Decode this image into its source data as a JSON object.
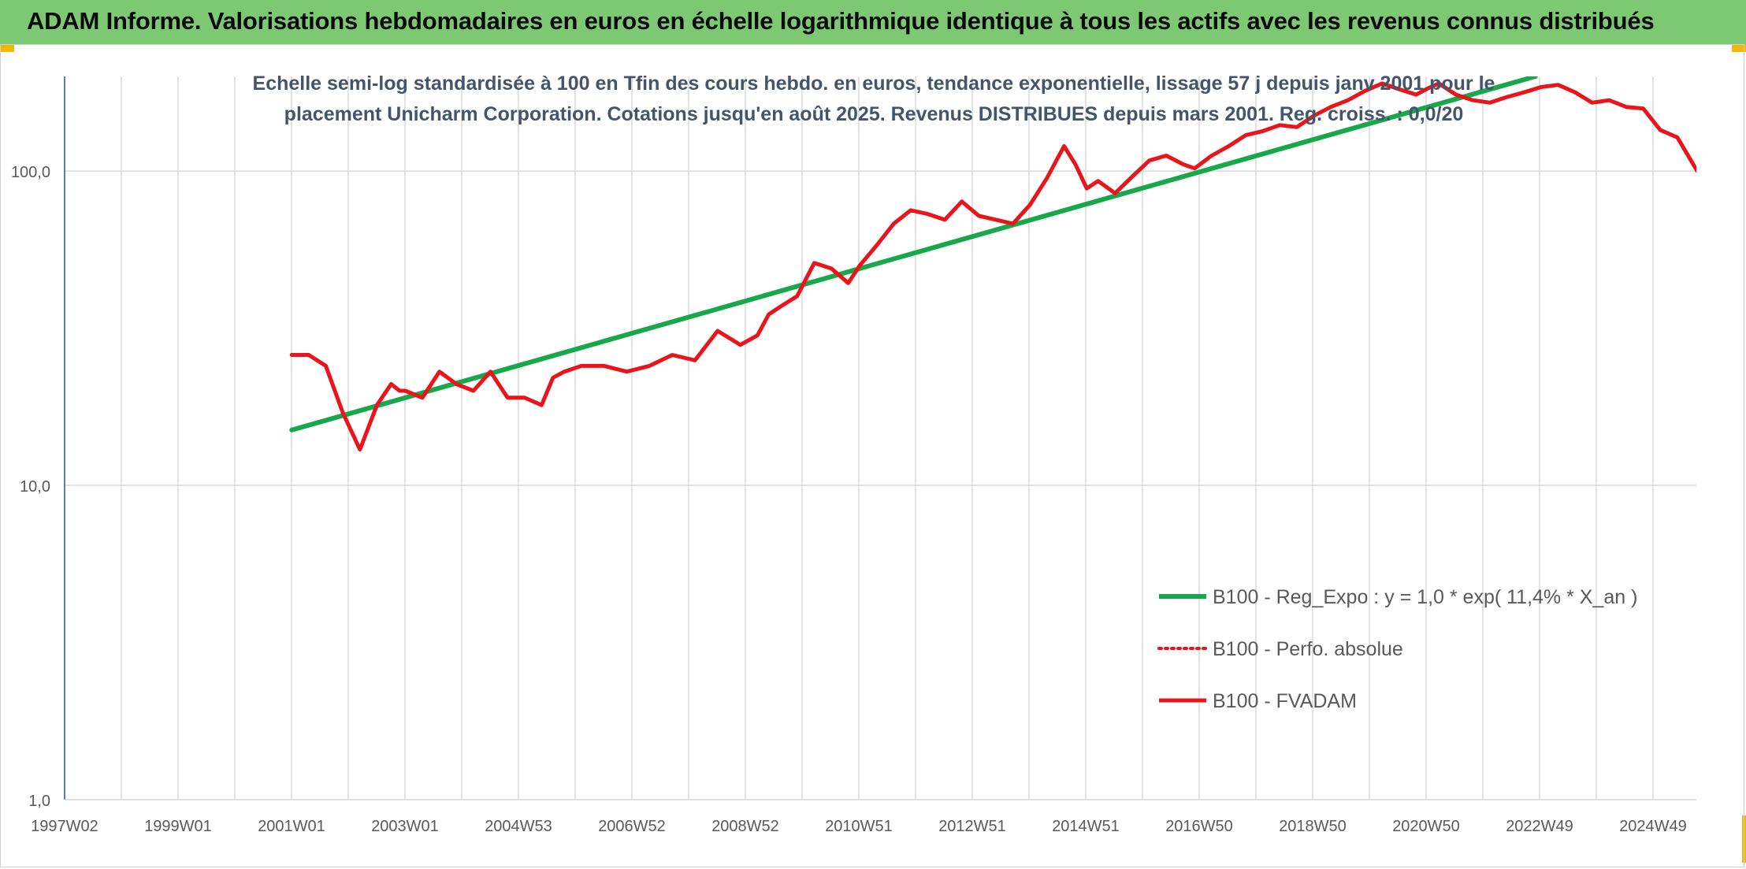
{
  "header": {
    "title": "ADAM Informe. Valorisations hebdomadaires en euros en échelle logarithmique identique à tous les actifs avec les revenus connus distribués"
  },
  "chart_data": {
    "type": "line",
    "title_line1": "Echelle semi-log standardisée à 100 en Tfin des cours hebdo. en euros, tendance exponentielle, lissage 57 j depuis janv 2001 pour le",
    "title_line2": "placement Unicharm Corporation. Cotations jusqu'en août 2025. Revenus DISTRIBUES depuis mars 2001. Reg. croiss. : 0,0/20",
    "y_scale": "log",
    "ylim": [
      1,
      200
    ],
    "y_ticks": [
      1,
      10,
      100
    ],
    "y_tick_labels": [
      "1,0",
      "10,0",
      "100,0"
    ],
    "x_ticks": [
      "1997W02",
      "1999W01",
      "2001W01",
      "2003W01",
      "2004W53",
      "2006W52",
      "2008W52",
      "2010W51",
      "2012W51",
      "2014W51",
      "2016W50",
      "2018W50",
      "2020W50",
      "2022W49",
      "2024W49"
    ],
    "xlim_years": [
      1997.0,
      2025.75
    ],
    "grid": true,
    "legend_position": "lower-right",
    "series": [
      {
        "name": "B100 - Reg_Expo : y = 1,0 * exp( 11,4% *  X_an )",
        "color": "#16a84a",
        "style": "solid",
        "x": [
          2001.0,
          2022.9
        ],
        "values": [
          15.0,
          200.0
        ]
      },
      {
        "name": "B100 - Perfo. absolue",
        "color": "#e8151b",
        "style": "dotted",
        "x": [],
        "values": []
      },
      {
        "name": "B100 - FVADAM",
        "color": "#e8151b",
        "style": "solid",
        "x": [
          2001.0,
          2001.3,
          2001.6,
          2001.9,
          2002.2,
          2002.5,
          2002.75,
          2002.9,
          2003.0,
          2003.3,
          2003.6,
          2003.9,
          2004.2,
          2004.5,
          2004.8,
          2005.1,
          2005.4,
          2005.6,
          2005.8,
          2006.1,
          2006.5,
          2006.9,
          2007.3,
          2007.7,
          2008.1,
          2008.5,
          2008.9,
          2009.2,
          2009.4,
          2009.6,
          2009.9,
          2010.2,
          2010.5,
          2010.8,
          2011.0,
          2011.3,
          2011.6,
          2011.9,
          2012.2,
          2012.5,
          2012.8,
          2013.1,
          2013.4,
          2013.7,
          2014.0,
          2014.3,
          2014.6,
          2014.8,
          2015.0,
          2015.2,
          2015.5,
          2015.8,
          2016.1,
          2016.4,
          2016.7,
          2016.9,
          2017.2,
          2017.5,
          2017.8,
          2018.1,
          2018.4,
          2018.7,
          2019.0,
          2019.3,
          2019.6,
          2019.9,
          2020.2,
          2020.5,
          2020.8,
          2021.0,
          2021.2,
          2021.5,
          2021.8,
          2022.1,
          2022.4,
          2022.7,
          2023.0,
          2023.3,
          2023.6,
          2023.9,
          2024.2,
          2024.5,
          2024.8,
          2025.1,
          2025.4,
          2025.75
        ],
        "values": [
          26,
          26,
          24,
          17,
          13,
          18,
          21,
          20,
          20,
          19,
          23,
          21,
          20,
          23,
          19,
          19,
          18,
          22,
          23,
          24,
          24,
          23,
          24,
          26,
          25,
          31,
          28,
          30,
          35,
          37,
          40,
          51,
          49,
          44,
          50,
          58,
          68,
          75,
          73,
          70,
          80,
          72,
          70,
          68,
          78,
          95,
          120,
          105,
          88,
          93,
          85,
          96,
          108,
          112,
          105,
          102,
          112,
          120,
          130,
          134,
          140,
          138,
          150,
          160,
          168,
          180,
          190,
          182,
          175,
          183,
          190,
          175,
          168,
          165,
          172,
          178,
          185,
          188,
          178,
          165,
          168,
          160,
          158,
          135,
          128,
          100
        ]
      }
    ]
  }
}
